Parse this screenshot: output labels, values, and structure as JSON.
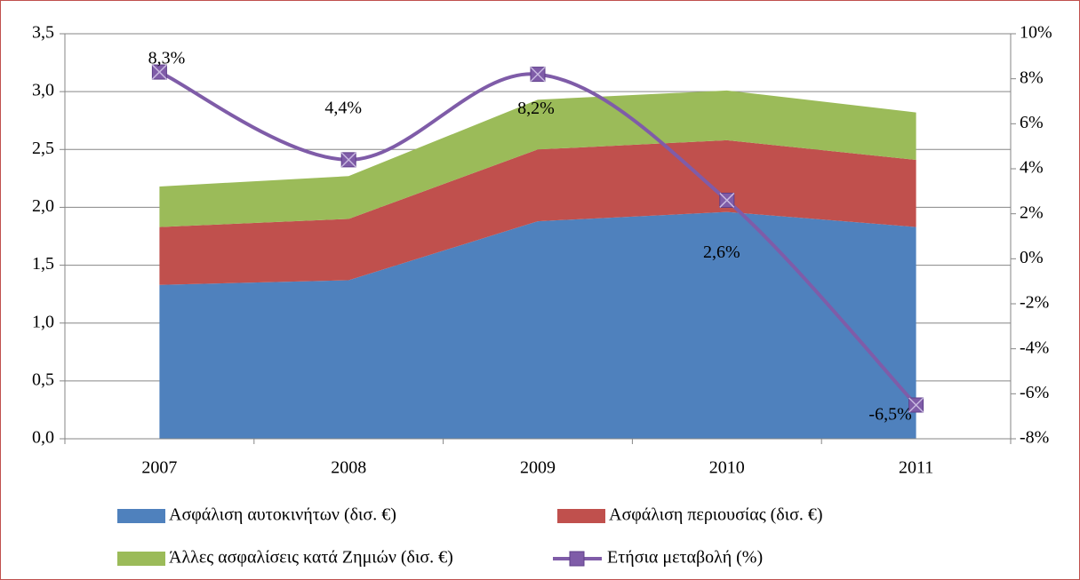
{
  "chart_data": {
    "type": "stacked-area-line",
    "categories": [
      "2007",
      "2008",
      "2009",
      "2010",
      "2011"
    ],
    "series": [
      {
        "name": "Ασφάλιση αυτοκινήτων (δισ. €)",
        "color": "#4f81bd",
        "values": [
          1.33,
          1.37,
          1.88,
          1.96,
          1.83
        ]
      },
      {
        "name": "Ασφάλιση περιουσίας (δισ. €)",
        "color": "#c0504d",
        "values": [
          0.5,
          0.53,
          0.62,
          0.62,
          0.58
        ]
      },
      {
        "name": "Άλλες ασφαλίσεις κατά Ζημιών (δισ. €)",
        "color": "#9bbb59",
        "values": [
          0.35,
          0.37,
          0.43,
          0.43,
          0.41
        ]
      },
      {
        "name": "Ετήσια μεταβολή (%)",
        "color": "#7f5ca8",
        "axis": "y2",
        "values": [
          8.3,
          4.4,
          8.2,
          2.6,
          -6.5
        ],
        "value_labels": [
          "8,3%",
          "4,4%",
          "8,2%",
          "2,6%",
          "-6,5%"
        ]
      }
    ],
    "ylim": [
      0,
      3.5
    ],
    "yticks": [
      {
        "value": 0,
        "label": "0,0"
      },
      {
        "value": 0.5,
        "label": "0,5"
      },
      {
        "value": 1,
        "label": "1,0"
      },
      {
        "value": 1.5,
        "label": "1,5"
      },
      {
        "value": 2,
        "label": "2,0"
      },
      {
        "value": 2.5,
        "label": "2,5"
      },
      {
        "value": 3,
        "label": "3,0"
      },
      {
        "value": 3.5,
        "label": "3,5"
      }
    ],
    "y2lim": [
      -8,
      10
    ],
    "y2ticks": [
      {
        "value": -8,
        "label": "-8%"
      },
      {
        "value": -6,
        "label": "-6%"
      },
      {
        "value": -4,
        "label": "-4%"
      },
      {
        "value": -2,
        "label": "-2%"
      },
      {
        "value": 0,
        "label": "0%"
      },
      {
        "value": 2,
        "label": "2%"
      },
      {
        "value": 4,
        "label": "4%"
      },
      {
        "value": 6,
        "label": "6%"
      },
      {
        "value": 8,
        "label": "8%"
      },
      {
        "value": 10,
        "label": "10%"
      }
    ],
    "grid": true,
    "legend": "bottom"
  }
}
